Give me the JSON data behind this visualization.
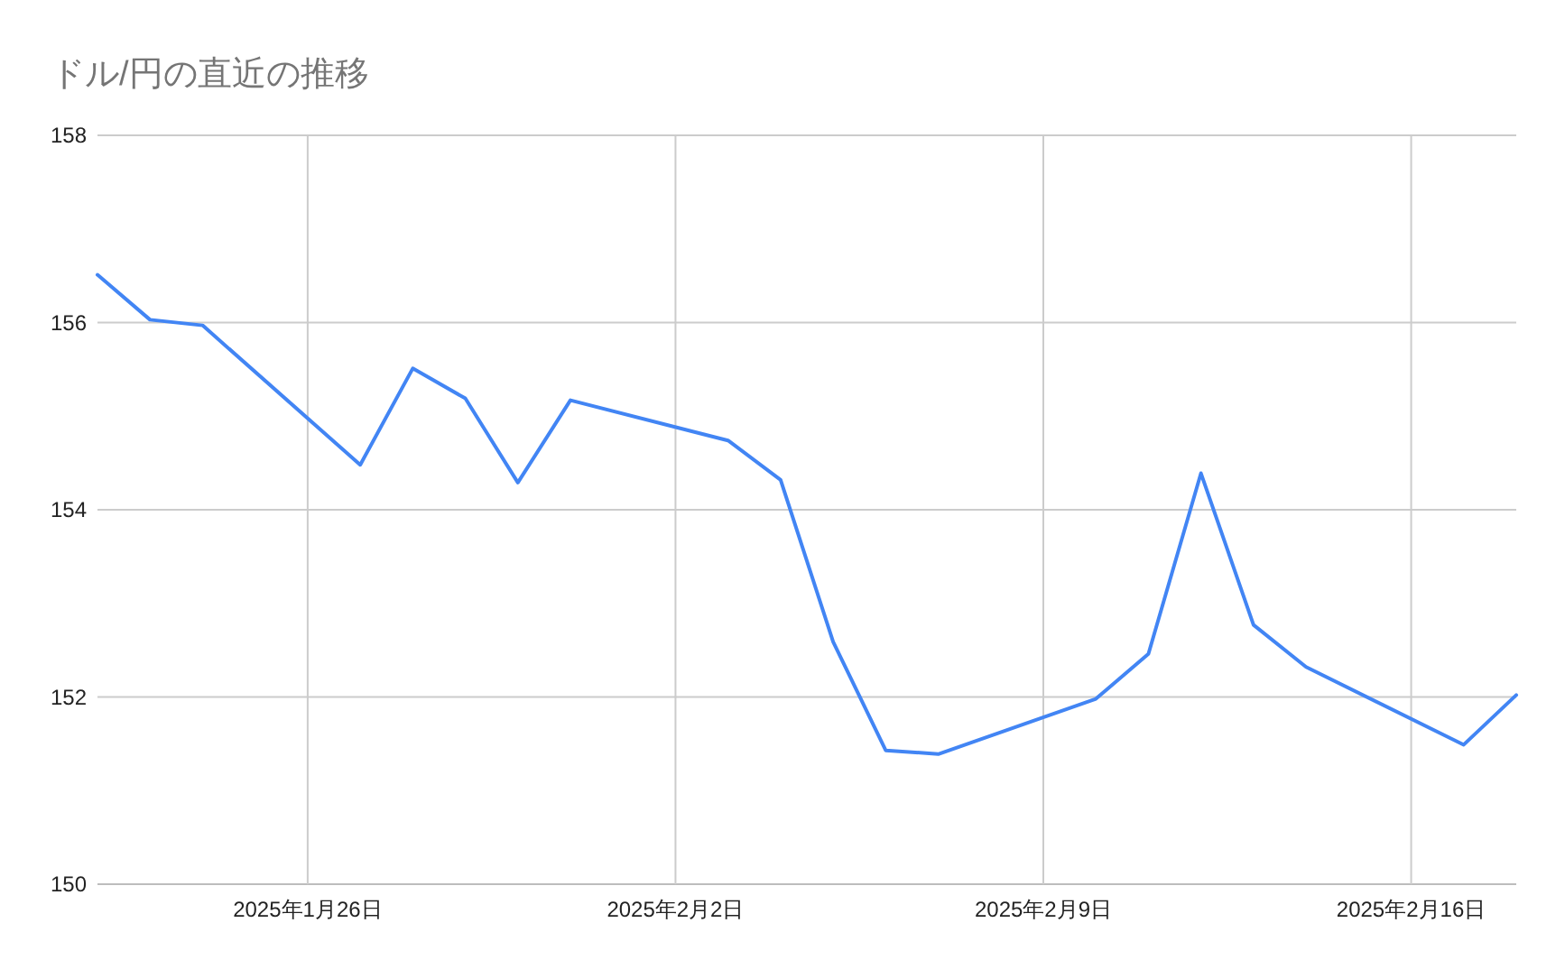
{
  "chart_data": {
    "type": "line",
    "title": "ドル/円の直近の推移",
    "x": [
      "2025-01-22",
      "2025-01-23",
      "2025-01-24",
      "2025-01-27",
      "2025-01-28",
      "2025-01-29",
      "2025-01-30",
      "2025-01-31",
      "2025-02-03",
      "2025-02-04",
      "2025-02-05",
      "2025-02-06",
      "2025-02-07",
      "2025-02-10",
      "2025-02-11",
      "2025-02-12",
      "2025-02-13",
      "2025-02-14",
      "2025-02-17",
      "2025-02-18"
    ],
    "values": [
      156.51,
      156.03,
      155.97,
      154.48,
      155.51,
      155.19,
      154.29,
      155.17,
      154.74,
      154.32,
      152.59,
      151.43,
      151.39,
      151.98,
      152.46,
      154.39,
      152.77,
      152.32,
      151.49,
      152.02
    ],
    "color": "#4285f4",
    "xlim": [
      "2025-01-22",
      "2025-02-18"
    ],
    "xticks": [
      {
        "value": "2025-01-26",
        "label": "2025年1月26日"
      },
      {
        "value": "2025-02-02",
        "label": "2025年2月2日"
      },
      {
        "value": "2025-02-09",
        "label": "2025年2月9日"
      },
      {
        "value": "2025-02-16",
        "label": "2025年2月16日"
      }
    ],
    "ylim": [
      150,
      158
    ],
    "yticks": [
      150,
      152,
      154,
      156,
      158
    ],
    "grid": true
  }
}
